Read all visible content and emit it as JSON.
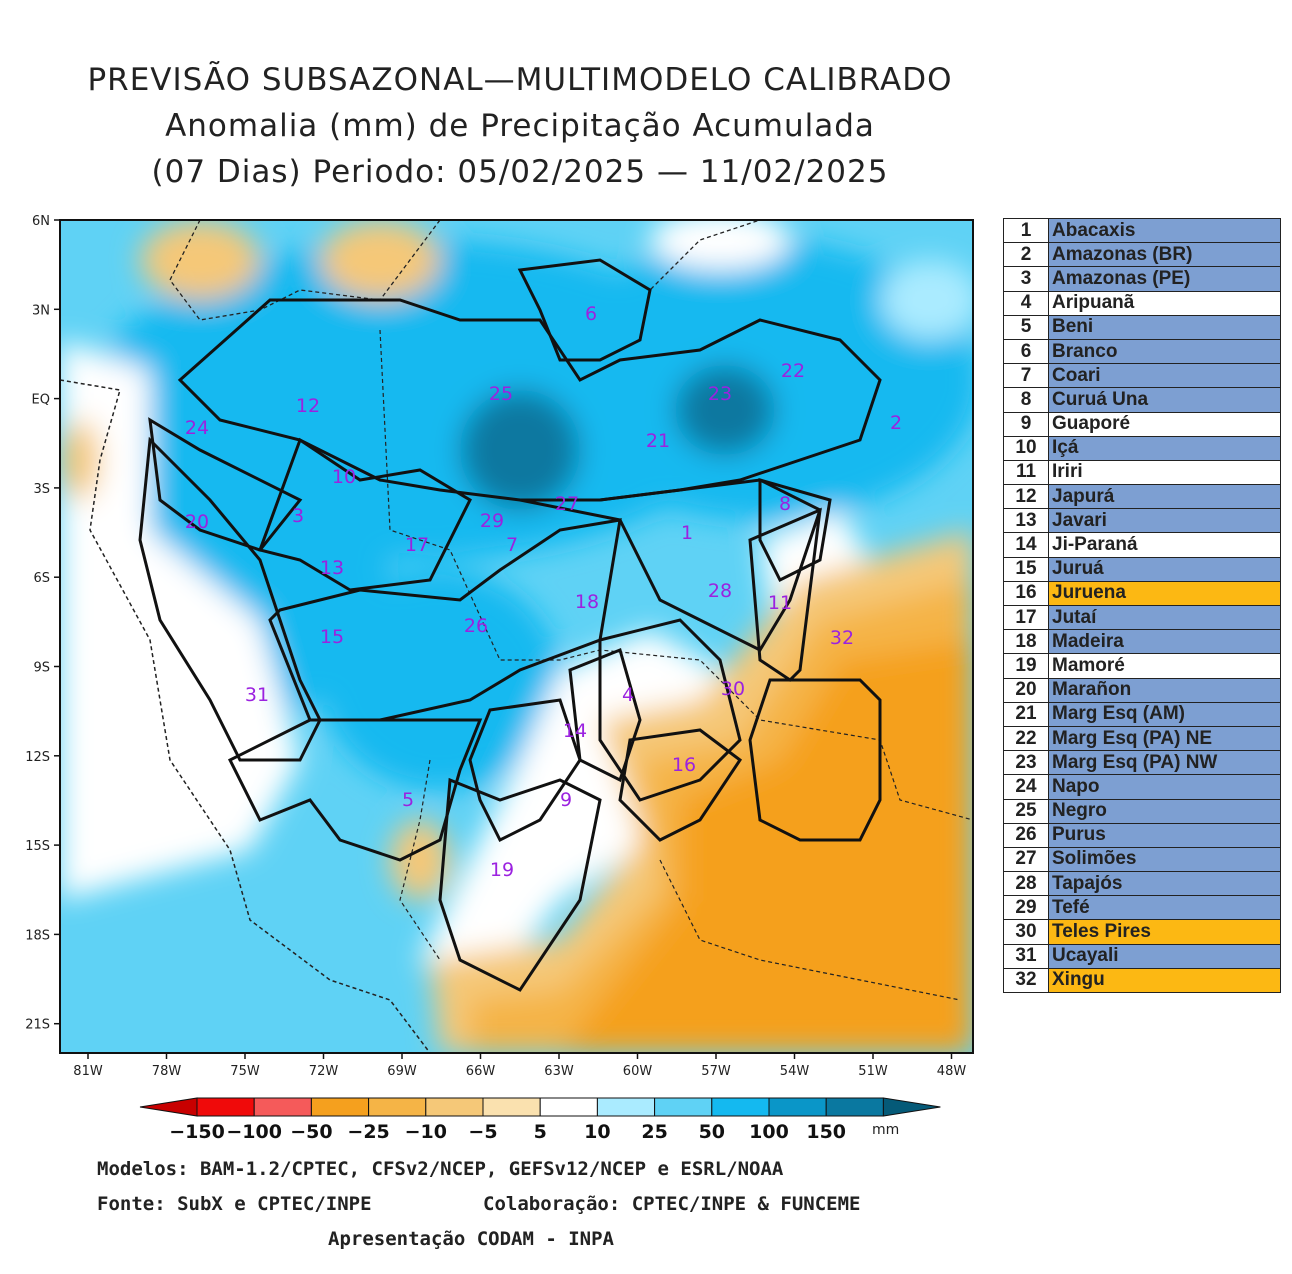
{
  "title": {
    "line1": "PREVISÃO SUBSAZONAL—MULTIMODELO CALIBRADO",
    "line2": "Anomalia (mm) de Precipitação Acumulada",
    "line3": "(07 Dias) Periodo: 05/02/2025 — 11/02/2025"
  },
  "axes": {
    "lat_labels": [
      "6N",
      "3N",
      "EQ",
      "3S",
      "6S",
      "9S",
      "12S",
      "15S",
      "18S",
      "21S"
    ],
    "lon_labels": [
      "81W",
      "78W",
      "75W",
      "72W",
      "69W",
      "66W",
      "63W",
      "60W",
      "57W",
      "54W",
      "51W",
      "48W"
    ]
  },
  "colorbar": {
    "labels": [
      "−150",
      "−100",
      "−50",
      "−25",
      "−10",
      "−5",
      "5",
      "10",
      "25",
      "50",
      "100",
      "150"
    ],
    "colors": [
      "#c80000",
      "#f00a0a",
      "#f55a5a",
      "#f5a01e",
      "#f5b446",
      "#f5c878",
      "#fae1af",
      "#ffffff",
      "#aaebff",
      "#5fd2f5",
      "#14b9f0",
      "#0a96c8",
      "#0a78a0",
      "#055a78"
    ],
    "unit": "mm"
  },
  "basins": [
    {
      "num": "1",
      "name": "Abacaxis",
      "color": "#7d9fd2"
    },
    {
      "num": "2",
      "name": "Amazonas (BR)",
      "color": "#7d9fd2"
    },
    {
      "num": "3",
      "name": "Amazonas (PE)",
      "color": "#7d9fd2"
    },
    {
      "num": "4",
      "name": "Aripuanã",
      "color": "#ffffff"
    },
    {
      "num": "5",
      "name": "Beni",
      "color": "#7d9fd2"
    },
    {
      "num": "6",
      "name": "Branco",
      "color": "#7d9fd2"
    },
    {
      "num": "7",
      "name": "Coari",
      "color": "#7d9fd2"
    },
    {
      "num": "8",
      "name": "Curuá Una",
      "color": "#7d9fd2"
    },
    {
      "num": "9",
      "name": "Guaporé",
      "color": "#ffffff"
    },
    {
      "num": "10",
      "name": "Içá",
      "color": "#7d9fd2"
    },
    {
      "num": "11",
      "name": "Iriri",
      "color": "#ffffff"
    },
    {
      "num": "12",
      "name": "Japurá",
      "color": "#7d9fd2"
    },
    {
      "num": "13",
      "name": "Javari",
      "color": "#7d9fd2"
    },
    {
      "num": "14",
      "name": "Ji-Paraná",
      "color": "#ffffff"
    },
    {
      "num": "15",
      "name": "Juruá",
      "color": "#7d9fd2"
    },
    {
      "num": "16",
      "name": "Juruena",
      "color": "#fcb813"
    },
    {
      "num": "17",
      "name": "Jutaí",
      "color": "#7d9fd2"
    },
    {
      "num": "18",
      "name": "Madeira",
      "color": "#7d9fd2"
    },
    {
      "num": "19",
      "name": "Mamoré",
      "color": "#ffffff"
    },
    {
      "num": "20",
      "name": "Marañon",
      "color": "#7d9fd2"
    },
    {
      "num": "21",
      "name": "Marg Esq (AM)",
      "color": "#7d9fd2"
    },
    {
      "num": "22",
      "name": "Marg Esq (PA) NE",
      "color": "#7d9fd2"
    },
    {
      "num": "23",
      "name": "Marg Esq (PA) NW",
      "color": "#7d9fd2"
    },
    {
      "num": "24",
      "name": "Napo",
      "color": "#7d9fd2"
    },
    {
      "num": "25",
      "name": "Negro",
      "color": "#7d9fd2"
    },
    {
      "num": "26",
      "name": "Purus",
      "color": "#7d9fd2"
    },
    {
      "num": "27",
      "name": "Solimões",
      "color": "#7d9fd2"
    },
    {
      "num": "28",
      "name": "Tapajós",
      "color": "#7d9fd2"
    },
    {
      "num": "29",
      "name": "Tefé",
      "color": "#7d9fd2"
    },
    {
      "num": "30",
      "name": "Teles Pires",
      "color": "#fcb813"
    },
    {
      "num": "31",
      "name": "Ucayali",
      "color": "#7d9fd2"
    },
    {
      "num": "32",
      "name": "Xingu",
      "color": "#fcb813"
    }
  ],
  "footer": {
    "models": "Modelos: BAM-1.2/CPTEC, CFSv2/NCEP, GEFSv12/NCEP e ESRL/NOAA",
    "source": "Fonte: SubX e CPTEC/INPE",
    "collab": "Colaboração: CPTEC/INPE & FUNCEME",
    "presentation": "Apresentação CODAM - INPA"
  }
}
